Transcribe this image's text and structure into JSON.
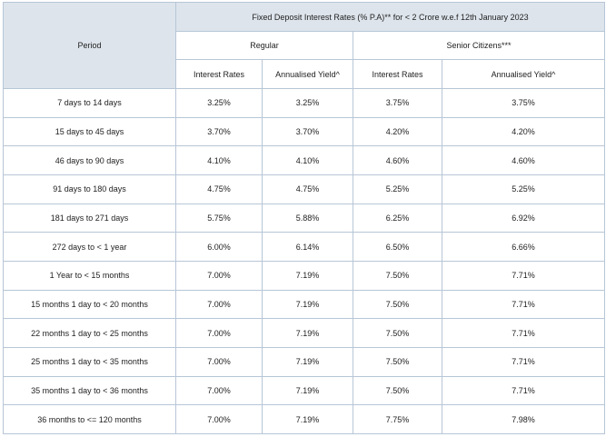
{
  "table": {
    "title": "Fixed Deposit Interest Rates (% P.A)** for < 2 Crore w.e.f 12th January 2023",
    "period_header": "Period",
    "regular_header": "Regular",
    "senior_header": "Senior Citizens***",
    "col_interest": "Interest Rates",
    "col_yield": "Annualised Yield^",
    "rows": [
      {
        "period": "7 days to 14 days",
        "reg_rate": "3.25%",
        "reg_yield": "3.25%",
        "sen_rate": "3.75%",
        "sen_yield": "3.75%"
      },
      {
        "period": "15 days to 45 days",
        "reg_rate": "3.70%",
        "reg_yield": "3.70%",
        "sen_rate": "4.20%",
        "sen_yield": "4.20%"
      },
      {
        "period": "46 days to 90 days",
        "reg_rate": "4.10%",
        "reg_yield": "4.10%",
        "sen_rate": "4.60%",
        "sen_yield": "4.60%"
      },
      {
        "period": "91 days to 180 days",
        "reg_rate": "4.75%",
        "reg_yield": "4.75%",
        "sen_rate": "5.25%",
        "sen_yield": "5.25%"
      },
      {
        "period": "181 days to 271 days",
        "reg_rate": "5.75%",
        "reg_yield": "5.88%",
        "sen_rate": "6.25%",
        "sen_yield": "6.92%"
      },
      {
        "period": "272 days to < 1 year",
        "reg_rate": "6.00%",
        "reg_yield": "6.14%",
        "sen_rate": "6.50%",
        "sen_yield": "6.66%"
      },
      {
        "period": "1 Year to < 15 months",
        "reg_rate": "7.00%",
        "reg_yield": "7.19%",
        "sen_rate": "7.50%",
        "sen_yield": "7.71%"
      },
      {
        "period": "15 months 1 day to < 20 months",
        "reg_rate": "7.00%",
        "reg_yield": "7.19%",
        "sen_rate": "7.50%",
        "sen_yield": "7.71%"
      },
      {
        "period": "22 months 1 day to < 25 months",
        "reg_rate": "7.00%",
        "reg_yield": "7.19%",
        "sen_rate": "7.50%",
        "sen_yield": "7.71%"
      },
      {
        "period": "25 months 1 day to < 35 months",
        "reg_rate": "7.00%",
        "reg_yield": "7.19%",
        "sen_rate": "7.50%",
        "sen_yield": "7.71%"
      },
      {
        "period": "35 months 1 day to < 36 months",
        "reg_rate": "7.00%",
        "reg_yield": "7.19%",
        "sen_rate": "7.50%",
        "sen_yield": "7.71%"
      },
      {
        "period": "36 months to <= 120 months",
        "reg_rate": "7.00%",
        "reg_yield": "7.19%",
        "sen_rate": "7.75%",
        "sen_yield": "7.98%"
      }
    ]
  },
  "colors": {
    "header_bg": "#dde4ec",
    "border": "#b7c6d6",
    "text": "#222222"
  }
}
